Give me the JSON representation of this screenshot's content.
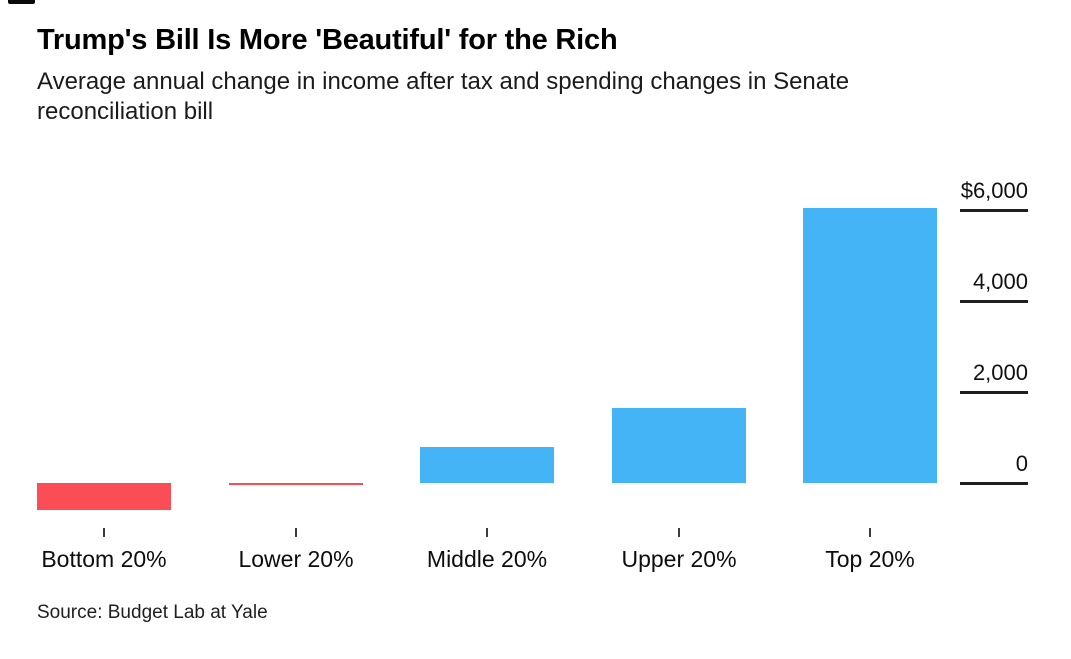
{
  "header": {
    "title": "Trump's Bill Is More 'Beautiful' for the Rich",
    "subtitle": "Average annual change in income after tax and spending changes in Senate reconciliation bill"
  },
  "footer": {
    "source": "Source: Budget Lab at Yale"
  },
  "chart_data": {
    "type": "bar",
    "title": "Trump's Bill Is More 'Beautiful' for the Rich",
    "subtitle": "Average annual change in income after tax and spending changes in Senate reconciliation bill",
    "categories": [
      "Bottom 20%",
      "Lower 20%",
      "Middle 20%",
      "Upper 20%",
      "Top 20%"
    ],
    "values": [
      -600,
      -50,
      800,
      1650,
      6050
    ],
    "unit": "dollars per year",
    "xlabel": "",
    "ylabel": "",
    "ylim": [
      -700,
      6200
    ],
    "yticks": [
      {
        "value": 0,
        "label": "0"
      },
      {
        "value": 2000,
        "label": "2,000"
      },
      {
        "value": 4000,
        "label": "4,000"
      },
      {
        "value": 6000,
        "label": "$6,000"
      }
    ],
    "grid": false,
    "legend": "none",
    "axis_side": "right",
    "colors": {
      "positive": "#45b4f6",
      "negative": "#fa4d56",
      "axis": "#1f1f1f"
    },
    "source": "Source: Budget Lab at Yale"
  }
}
